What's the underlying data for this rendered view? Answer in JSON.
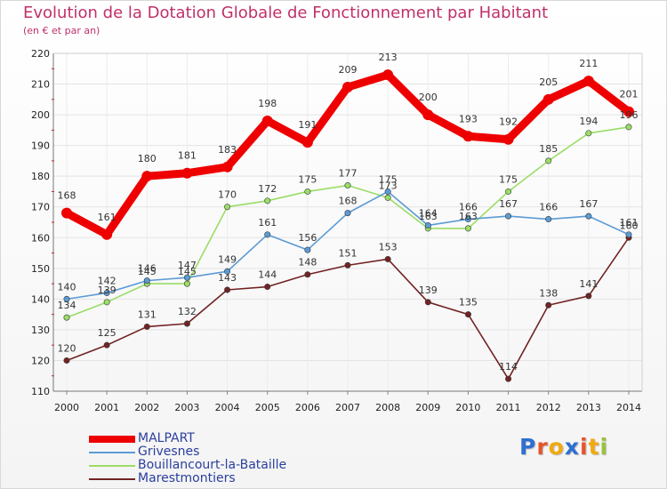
{
  "header": {
    "title": "Evolution de la Dotation Globale de Fonctionnement par Habitant",
    "subtitle": "(en € et par an)"
  },
  "logo": {
    "text": "Proxiti",
    "letter_colors": [
      "#2e6fd1",
      "#e8542a",
      "#f2a90f",
      "#2e6fd1",
      "#e8542a",
      "#f2a90f",
      "#9ac23c"
    ]
  },
  "chart_data": {
    "type": "line",
    "title": "Evolution de la Dotation Globale de Fonctionnement par Habitant",
    "subtitle": "(en € et par an)",
    "xlabel": "",
    "ylabel": "",
    "x": [
      "2000",
      "2001",
      "2002",
      "2003",
      "2004",
      "2005",
      "2006",
      "2007",
      "2008",
      "2009",
      "2010",
      "2011",
      "2012",
      "2013",
      "2014"
    ],
    "ylim": [
      110,
      220
    ],
    "yticks": [
      110,
      120,
      130,
      140,
      150,
      160,
      170,
      180,
      190,
      200,
      210,
      220
    ],
    "grid": true,
    "legend_position": "bottom-left",
    "series": [
      {
        "name": "Marestmontiers",
        "color": "#722323",
        "values": [
          120,
          125,
          131,
          132,
          143,
          144,
          148,
          151,
          153,
          139,
          135,
          114,
          138,
          141,
          160
        ]
      },
      {
        "name": "Bouillancourt-la-Bataille",
        "color": "#99dd66",
        "values": [
          134,
          139,
          145,
          145,
          170,
          172,
          175,
          177,
          173,
          163,
          163,
          175,
          185,
          194,
          196
        ]
      },
      {
        "name": "Grivesnes",
        "color": "#5b9bd5",
        "values": [
          140,
          142,
          146,
          147,
          149,
          161,
          156,
          168,
          175,
          164,
          166,
          167,
          166,
          167,
          161
        ]
      },
      {
        "name": "MALPART",
        "color": "#ee0000",
        "values": [
          168,
          161,
          180,
          181,
          183,
          198,
          191,
          209,
          213,
          200,
          193,
          192,
          205,
          211,
          201
        ]
      }
    ],
    "legend_order": [
      "MALPART",
      "Grivesnes",
      "Bouillancourt-la-Bataille",
      "Marestmontiers"
    ]
  }
}
